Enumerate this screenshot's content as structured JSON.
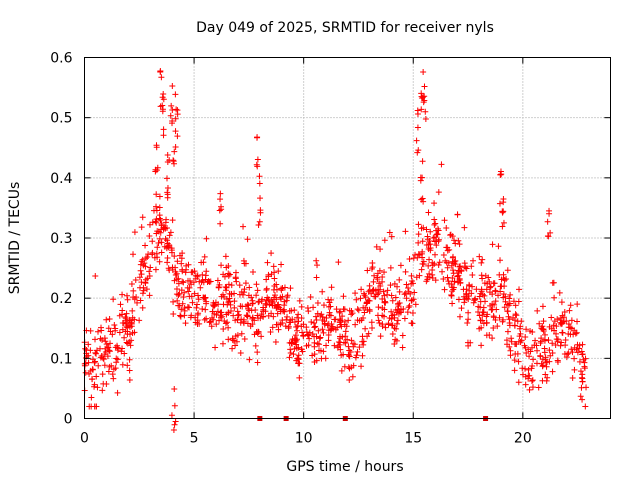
{
  "chart_data": {
    "type": "scatter",
    "title": "Day 049 of 2025, SRMTID for receiver nyls",
    "xlabel": "GPS time / hours",
    "ylabel": "SRMTID / TECUs",
    "xlim": [
      0,
      24
    ],
    "ylim": [
      0,
      0.6
    ],
    "xticks": [
      0,
      5,
      10,
      15,
      20
    ],
    "xtick_labels": [
      "0",
      "5",
      "10",
      "15",
      "20"
    ],
    "yticks": [
      0,
      0.1,
      0.2,
      0.3,
      0.4,
      0.5,
      0.6
    ],
    "ytick_labels": [
      "0",
      "0.1",
      "0.2",
      "0.3",
      "0.4",
      "0.5",
      "0.6"
    ],
    "grid": true,
    "marker": "+",
    "color": "#ff0000",
    "series": [
      {
        "name": "SRMTID",
        "trend": {
          "x": [
            0,
            0.3,
            0.6,
            1.0,
            1.5,
            2.0,
            2.5,
            3.0,
            3.3,
            3.6,
            4.0,
            4.3,
            4.8,
            5.5,
            6.0,
            6.5,
            7.0,
            7.5,
            8.0,
            8.5,
            9.0,
            9.5,
            10.0,
            10.5,
            11.0,
            11.5,
            12.0,
            12.5,
            13.0,
            13.5,
            14.0,
            14.5,
            15.0,
            15.3,
            15.7,
            16.0,
            16.5,
            17.0,
            17.5,
            18.0,
            18.5,
            19.0,
            19.5,
            20.0,
            20.5,
            21.0,
            21.5,
            22.0,
            22.5,
            22.9
          ],
          "y": [
            0.1,
            0.06,
            0.08,
            0.12,
            0.13,
            0.14,
            0.22,
            0.26,
            0.3,
            0.32,
            0.26,
            0.22,
            0.21,
            0.2,
            0.19,
            0.18,
            0.17,
            0.18,
            0.17,
            0.2,
            0.19,
            0.13,
            0.14,
            0.15,
            0.15,
            0.16,
            0.13,
            0.14,
            0.2,
            0.21,
            0.17,
            0.19,
            0.22,
            0.26,
            0.27,
            0.3,
            0.26,
            0.24,
            0.2,
            0.19,
            0.18,
            0.22,
            0.15,
            0.11,
            0.09,
            0.12,
            0.15,
            0.14,
            0.12,
            0.07
          ]
        },
        "spread": 0.055,
        "spikes": [
          {
            "x": 3.5,
            "y": 0.58
          },
          {
            "x": 3.6,
            "y": 0.55
          },
          {
            "x": 3.3,
            "y": 0.48
          },
          {
            "x": 4.0,
            "y": 0.56
          },
          {
            "x": 4.2,
            "y": 0.54
          },
          {
            "x": 4.1,
            "y": 0.5
          },
          {
            "x": 3.8,
            "y": 0.45
          },
          {
            "x": 7.9,
            "y": 0.48
          },
          {
            "x": 8.0,
            "y": 0.4
          },
          {
            "x": 15.4,
            "y": 0.58
          },
          {
            "x": 15.5,
            "y": 0.56
          },
          {
            "x": 15.4,
            "y": 0.44
          },
          {
            "x": 15.2,
            "y": 0.52
          },
          {
            "x": 19.0,
            "y": 0.42
          },
          {
            "x": 19.1,
            "y": 0.39
          },
          {
            "x": 21.2,
            "y": 0.35
          },
          {
            "x": 6.2,
            "y": 0.38
          },
          {
            "x": 4.1,
            "y": 0.05
          }
        ],
        "gaps": [
          8.0,
          9.2,
          11.9,
          18.3
        ],
        "n_points": 1400
      }
    ]
  }
}
